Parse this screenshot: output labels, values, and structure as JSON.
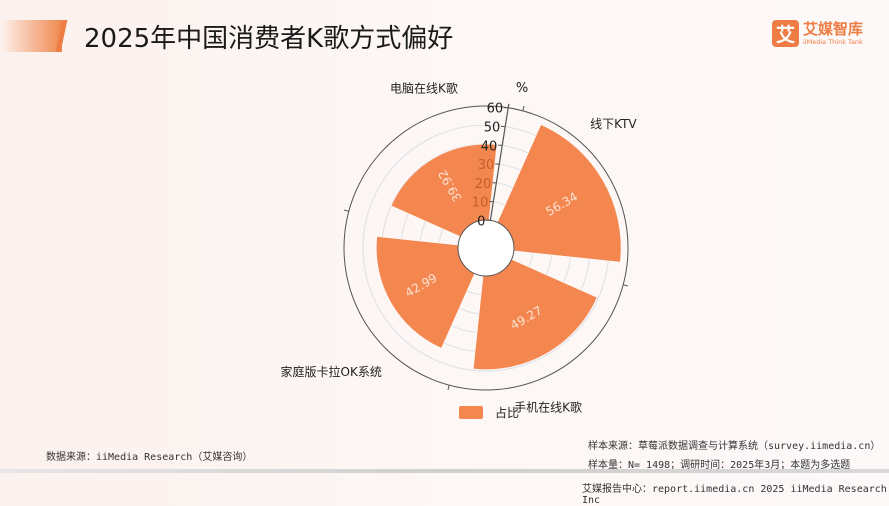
{
  "header": {
    "title": "2025年中国消费者K歌方式偏好"
  },
  "logo": {
    "mark": "艾",
    "name": "艾媒智库",
    "tagline": "iiMedia Think Tank"
  },
  "chart_data": {
    "type": "polar-bar",
    "unit_label": "%",
    "categories": [
      "线下KTV",
      "手机在线K歌",
      "家庭版卡拉OK系统",
      "电脑在线K歌"
    ],
    "series": [
      {
        "name": "占比",
        "values": [
          56.34,
          49.27,
          42.99,
          39.92
        ]
      }
    ],
    "r_ticks": [
      "0",
      "10",
      "20",
      "30",
      "40",
      "50",
      "60"
    ],
    "rlim": [
      0,
      60
    ],
    "grid": true,
    "legend": "bottom",
    "bar_color": "#f4874f",
    "value_label_color": "#fde3d3"
  },
  "footer": {
    "source": "数据来源：iiMedia Research（艾媒咨询）",
    "sample_source": "样本来源：草莓派数据调查与计算系统（survey.iimedia.cn）",
    "sample_info": "样本量：N= 1498；调研时间：2025年3月；本题为多选题",
    "report_center": "艾媒报告中心：report.iimedia.cn   2025 iiMedia Research Inc"
  }
}
